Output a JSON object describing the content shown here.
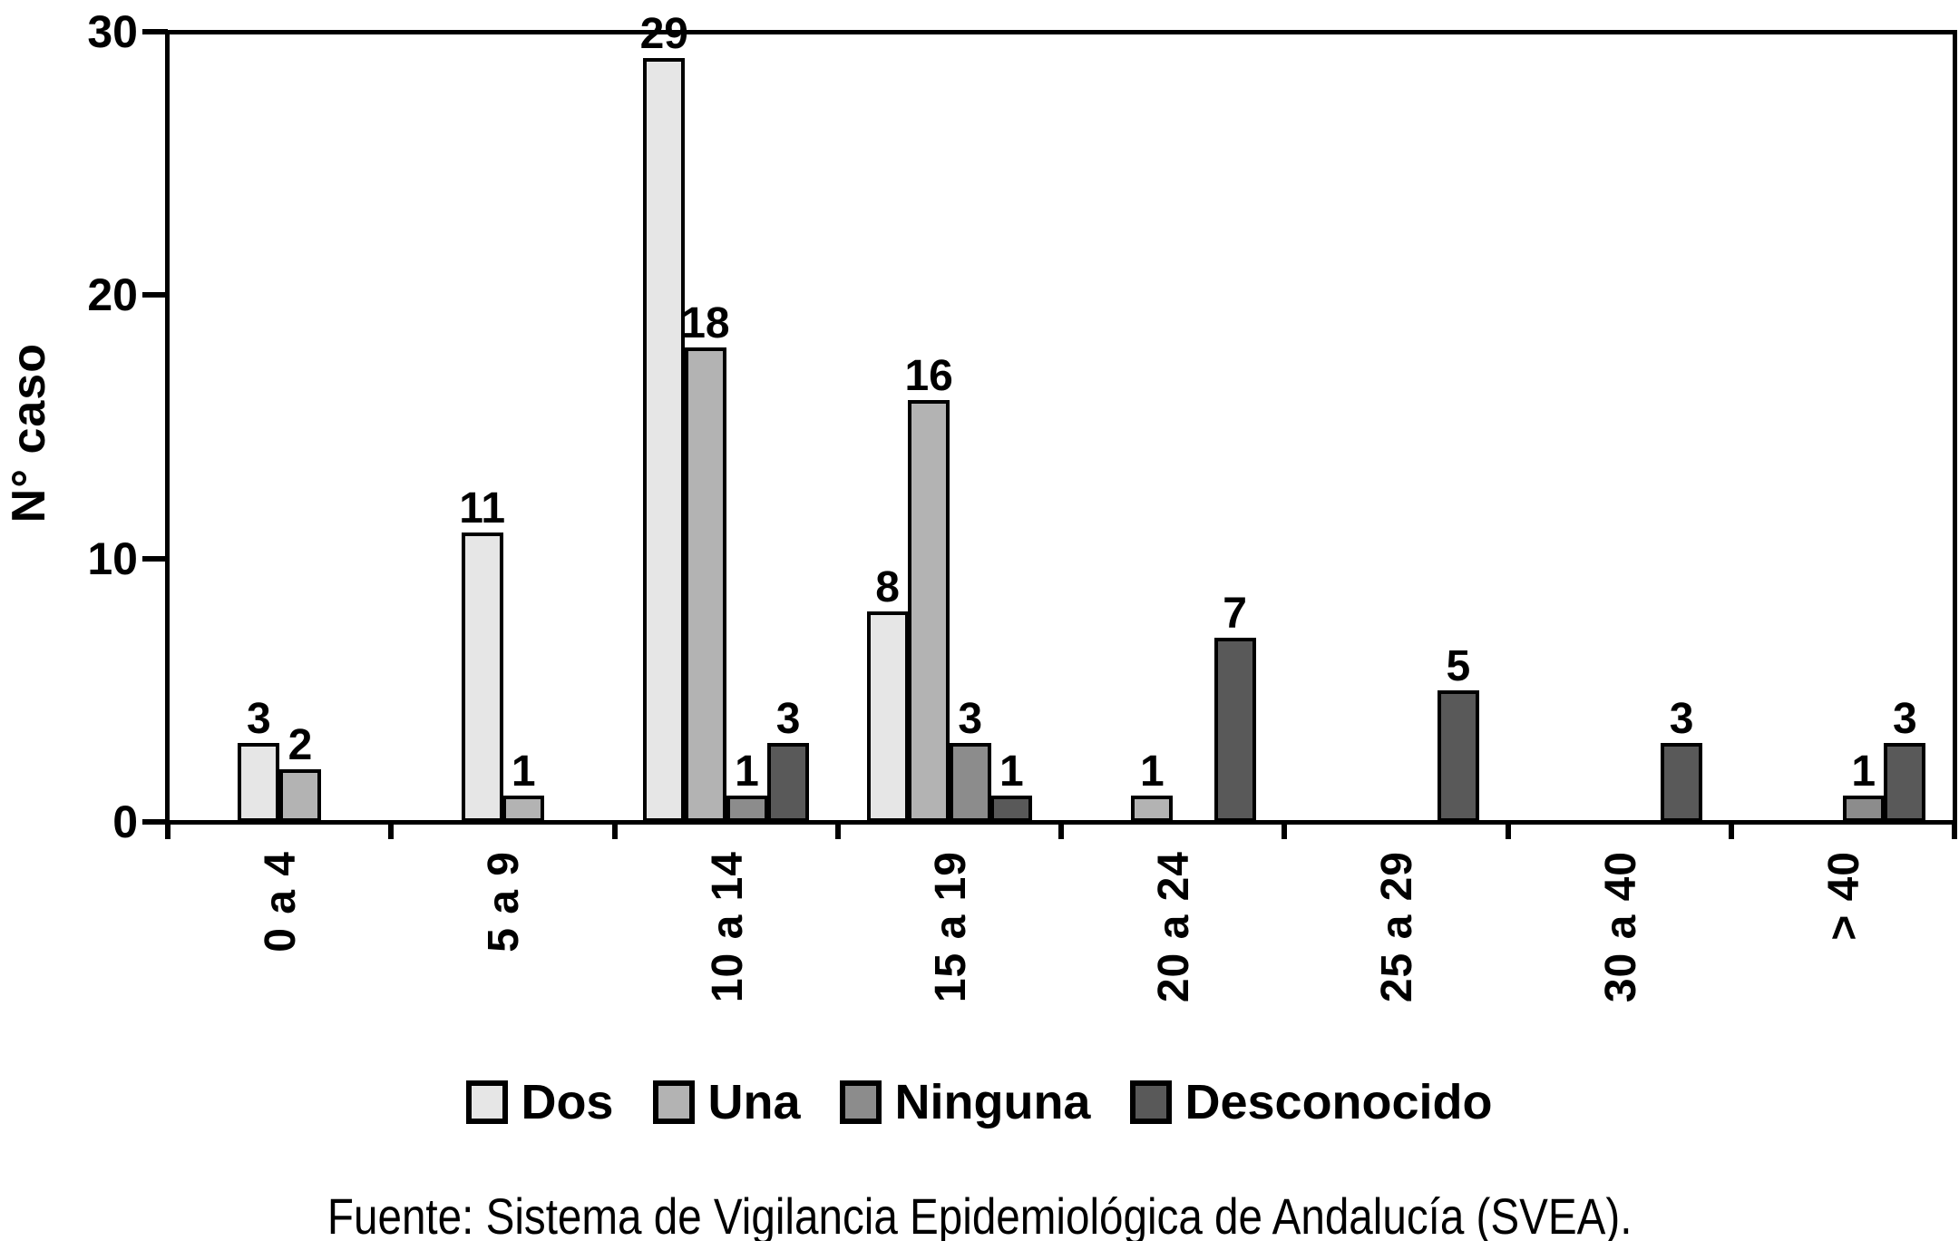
{
  "chart_data": {
    "type": "bar",
    "title": "",
    "xlabel": "",
    "ylabel": "N° caso",
    "ylim": [
      0,
      30
    ],
    "yticks": [
      0,
      10,
      20,
      30
    ],
    "grid": false,
    "legend_position": "bottom",
    "bar_value_labels_shown": true,
    "categories": [
      "0 a 4",
      "5 a 9",
      "10 a 14",
      "15 a 19",
      "20 a 24",
      "25 a 29",
      "30 a 40",
      "> 40"
    ],
    "series": [
      {
        "name": "Dos",
        "color": "#e6e6e6",
        "values": [
          3,
          11,
          29,
          8,
          null,
          null,
          null,
          null
        ],
        "slots": [
          1,
          1,
          0,
          0,
          null,
          null,
          null,
          null
        ]
      },
      {
        "name": "Una",
        "color": "#b3b3b3",
        "values": [
          2,
          1,
          18,
          16,
          1,
          null,
          null,
          null
        ],
        "slots": [
          2,
          2,
          1,
          1,
          1,
          null,
          null,
          null
        ]
      },
      {
        "name": "Ninguna",
        "color": "#8c8c8c",
        "values": [
          null,
          null,
          1,
          3,
          null,
          null,
          null,
          1
        ],
        "slots": [
          null,
          null,
          2,
          2,
          null,
          null,
          null,
          2
        ]
      },
      {
        "name": "Desconocido",
        "color": "#595959",
        "values": [
          null,
          null,
          3,
          1,
          7,
          5,
          3,
          3
        ],
        "slots": [
          null,
          null,
          3,
          3,
          3,
          3,
          3,
          3
        ]
      }
    ]
  },
  "footer": {
    "source_text": "Fuente: Sistema de Vigilancia Epidemiológica de Andalucía (SVEA)."
  }
}
